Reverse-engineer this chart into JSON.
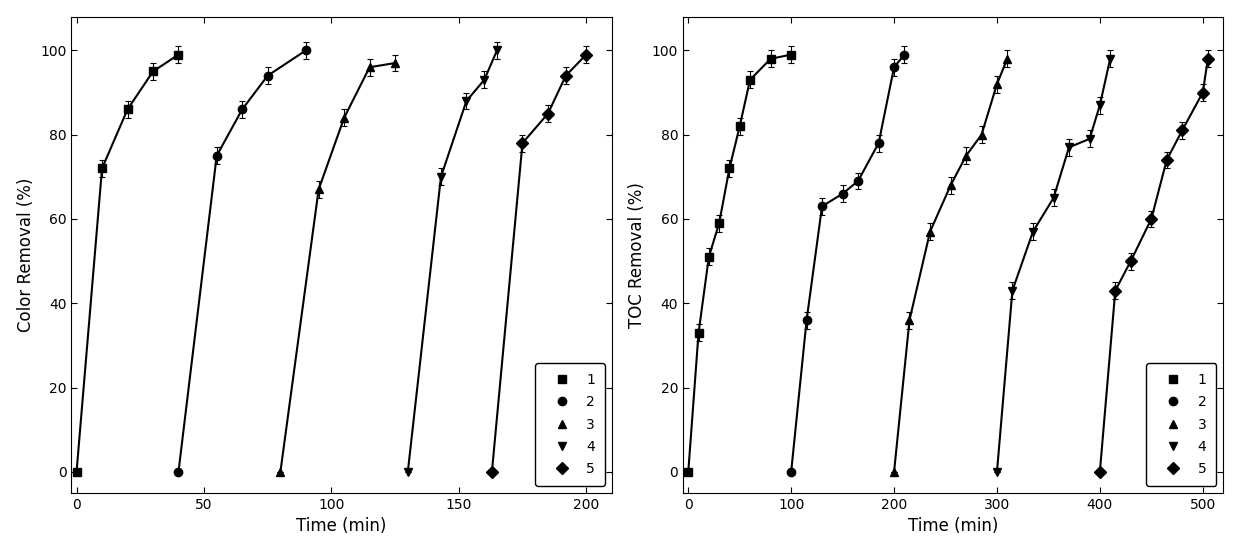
{
  "left": {
    "ylabel": "Color Removal (%)",
    "xlabel": "Time (min)",
    "xlim": [
      -2,
      210
    ],
    "ylim": [
      -5,
      108
    ],
    "xticks": [
      0,
      50,
      100,
      150,
      200
    ],
    "yticks": [
      0,
      20,
      40,
      60,
      80,
      100
    ],
    "series": [
      {
        "label": "1",
        "marker": "s",
        "x": [
          0,
          10,
          20,
          30,
          40
        ],
        "y": [
          0,
          72,
          86,
          95,
          99
        ],
        "yerr": [
          0,
          2,
          2,
          2,
          2
        ]
      },
      {
        "label": "2",
        "marker": "o",
        "x": [
          40,
          55,
          65,
          75,
          90
        ],
        "y": [
          0,
          75,
          86,
          94,
          100
        ],
        "yerr": [
          0,
          2,
          2,
          2,
          2
        ]
      },
      {
        "label": "3",
        "marker": "^",
        "x": [
          80,
          95,
          105,
          115,
          125
        ],
        "y": [
          0,
          67,
          84,
          96,
          97
        ],
        "yerr": [
          0,
          2,
          2,
          2,
          2
        ]
      },
      {
        "label": "4",
        "marker": "v",
        "x": [
          130,
          143,
          153,
          160,
          165
        ],
        "y": [
          0,
          70,
          88,
          93,
          100
        ],
        "yerr": [
          0,
          2,
          2,
          2,
          2
        ]
      },
      {
        "label": "5",
        "marker": "D",
        "x": [
          163,
          175,
          185,
          192,
          200
        ],
        "y": [
          0,
          78,
          85,
          94,
          99
        ],
        "yerr": [
          0,
          2,
          2,
          2,
          2
        ]
      }
    ]
  },
  "right": {
    "ylabel": "TOC Removal (%)",
    "xlabel": "Time (min)",
    "xlim": [
      -5,
      520
    ],
    "ylim": [
      -5,
      108
    ],
    "xticks": [
      0,
      100,
      200,
      300,
      400,
      500
    ],
    "yticks": [
      0,
      20,
      40,
      60,
      80,
      100
    ],
    "series": [
      {
        "label": "1",
        "marker": "s",
        "x": [
          0,
          10,
          20,
          30,
          40,
          50,
          60,
          80,
          100
        ],
        "y": [
          0,
          33,
          51,
          59,
          72,
          82,
          93,
          98,
          99
        ],
        "yerr": [
          0,
          2,
          2,
          2,
          2,
          2,
          2,
          2,
          2
        ]
      },
      {
        "label": "2",
        "marker": "o",
        "x": [
          100,
          115,
          130,
          150,
          165,
          185,
          200,
          210
        ],
        "y": [
          0,
          36,
          63,
          66,
          69,
          78,
          96,
          99
        ],
        "yerr": [
          0,
          2,
          2,
          2,
          2,
          2,
          2,
          2
        ]
      },
      {
        "label": "3",
        "marker": "^",
        "x": [
          200,
          215,
          235,
          255,
          270,
          285,
          300,
          310
        ],
        "y": [
          0,
          36,
          57,
          68,
          75,
          80,
          92,
          98
        ],
        "yerr": [
          0,
          2,
          2,
          2,
          2,
          2,
          2,
          2
        ]
      },
      {
        "label": "4",
        "marker": "v",
        "x": [
          300,
          315,
          335,
          355,
          370,
          390,
          400,
          410
        ],
        "y": [
          0,
          43,
          57,
          65,
          77,
          79,
          87,
          98
        ],
        "yerr": [
          0,
          2,
          2,
          2,
          2,
          2,
          2,
          2
        ]
      },
      {
        "label": "5",
        "marker": "D",
        "x": [
          400,
          415,
          430,
          450,
          465,
          480,
          500,
          505
        ],
        "y": [
          0,
          43,
          50,
          60,
          74,
          81,
          90,
          98
        ],
        "yerr": [
          0,
          2,
          2,
          2,
          2,
          2,
          2,
          2
        ]
      }
    ]
  },
  "color": "#000000",
  "linewidth": 1.5,
  "markersize": 6,
  "capsize": 2,
  "legend_fontsize": 10,
  "axis_fontsize": 12,
  "tick_fontsize": 10
}
